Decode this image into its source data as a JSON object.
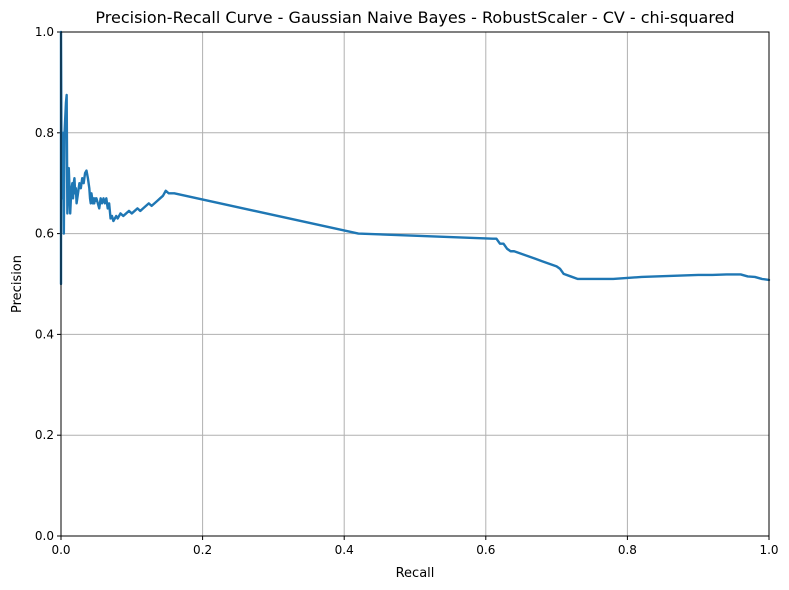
{
  "chart_data": {
    "type": "line",
    "title": "Precision-Recall Curve - Gaussian Naive Bayes - RobustScaler - CV - chi-squared",
    "xlabel": "Recall",
    "ylabel": "Precision",
    "xlim": [
      0.0,
      1.0
    ],
    "ylim": [
      0.0,
      1.0
    ],
    "grid": true,
    "legend": "none",
    "xticks": [
      0.0,
      0.2,
      0.4,
      0.6,
      0.8,
      1.0
    ],
    "xtick_labels": [
      "0.0",
      "0.2",
      "0.4",
      "0.6",
      "0.8",
      "1.0"
    ],
    "yticks": [
      0.0,
      0.2,
      0.4,
      0.6,
      0.8,
      1.0
    ],
    "ytick_labels": [
      "0.0",
      "0.2",
      "0.4",
      "0.6",
      "0.8",
      "1.0"
    ],
    "series": [
      {
        "color": "#1f77b4",
        "x": [
          0.0,
          0.0,
          0.001,
          0.002,
          0.003,
          0.004,
          0.005,
          0.006,
          0.007,
          0.008,
          0.009,
          0.01,
          0.011,
          0.012,
          0.013,
          0.014,
          0.015,
          0.016,
          0.017,
          0.018,
          0.019,
          0.02,
          0.021,
          0.022,
          0.024,
          0.026,
          0.028,
          0.03,
          0.032,
          0.034,
          0.036,
          0.038,
          0.04,
          0.041,
          0.042,
          0.043,
          0.044,
          0.045,
          0.046,
          0.047,
          0.048,
          0.049,
          0.05,
          0.052,
          0.054,
          0.056,
          0.058,
          0.06,
          0.062,
          0.064,
          0.066,
          0.068,
          0.07,
          0.072,
          0.074,
          0.076,
          0.078,
          0.08,
          0.084,
          0.088,
          0.092,
          0.096,
          0.1,
          0.104,
          0.108,
          0.112,
          0.116,
          0.12,
          0.124,
          0.128,
          0.132,
          0.136,
          0.14,
          0.144,
          0.148,
          0.152,
          0.16,
          0.42,
          0.61,
          0.615,
          0.62,
          0.625,
          0.63,
          0.635,
          0.64,
          0.65,
          0.66,
          0.67,
          0.68,
          0.69,
          0.7,
          0.705,
          0.71,
          0.72,
          0.73,
          0.74,
          0.76,
          0.78,
          0.8,
          0.82,
          0.84,
          0.86,
          0.88,
          0.9,
          0.92,
          0.94,
          0.96,
          0.97,
          0.98,
          0.99,
          1.0
        ],
        "y": [
          0.5,
          1.0,
          0.67,
          0.75,
          0.8,
          0.6,
          0.8,
          0.83,
          0.86,
          0.875,
          0.64,
          0.7,
          0.73,
          0.69,
          0.64,
          0.67,
          0.69,
          0.7,
          0.67,
          0.7,
          0.71,
          0.68,
          0.69,
          0.66,
          0.68,
          0.7,
          0.69,
          0.71,
          0.7,
          0.72,
          0.725,
          0.71,
          0.69,
          0.67,
          0.66,
          0.68,
          0.67,
          0.66,
          0.67,
          0.66,
          0.67,
          0.665,
          0.67,
          0.66,
          0.65,
          0.67,
          0.66,
          0.67,
          0.66,
          0.67,
          0.65,
          0.66,
          0.63,
          0.635,
          0.625,
          0.63,
          0.635,
          0.63,
          0.64,
          0.635,
          0.64,
          0.645,
          0.64,
          0.645,
          0.65,
          0.645,
          0.65,
          0.655,
          0.66,
          0.655,
          0.66,
          0.665,
          0.67,
          0.675,
          0.685,
          0.68,
          0.68,
          0.6,
          0.59,
          0.59,
          0.58,
          0.58,
          0.57,
          0.565,
          0.565,
          0.56,
          0.555,
          0.55,
          0.545,
          0.54,
          0.535,
          0.53,
          0.52,
          0.515,
          0.51,
          0.51,
          0.51,
          0.51,
          0.512,
          0.514,
          0.515,
          0.516,
          0.517,
          0.518,
          0.518,
          0.519,
          0.519,
          0.515,
          0.514,
          0.51,
          0.508
        ]
      }
    ]
  }
}
